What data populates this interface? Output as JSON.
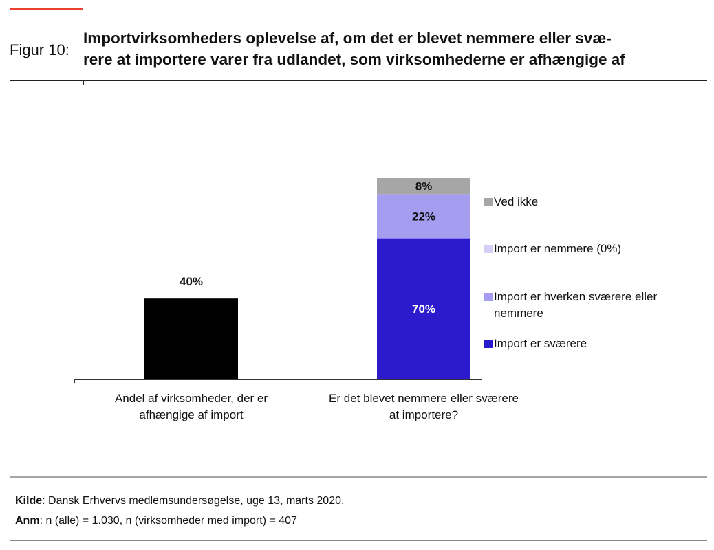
{
  "figure_label": "Figur 10:",
  "title_lines": [
    "Importvirksomheders oplevelse af, om det er blevet nemmere eller svæ-",
    "rere at importere varer fra udlandet, som virksomhederne er afhængige af"
  ],
  "chart_data": {
    "type": "bar",
    "stacked": true,
    "title": "Importvirksomheders oplevelse af, om det er blevet nemmere eller sværere at importere varer fra udlandet, som virksomhederne er afhængige af",
    "categories": [
      [
        "Andel af virksomheder, der er",
        "afhængige af import"
      ],
      [
        "Er det blevet nemmere eller sværere",
        "at importere?"
      ]
    ],
    "ylim": [
      0,
      100
    ],
    "grid": false,
    "legend_position": "right",
    "single_bar": {
      "category_index": 0,
      "value": 40,
      "label": "40%",
      "color": "#000000"
    },
    "series": [
      {
        "name": "Import er sværere",
        "value": 70,
        "label": "70%",
        "color": "#2b1bcc",
        "label_color": "#ffffff"
      },
      {
        "name": "Import er hverken sværere eller nemmere",
        "value": 22,
        "label": "22%",
        "color": "#a59ef0",
        "label_color": "#111111"
      },
      {
        "name": "Import er nemmere (0%)",
        "value": 0,
        "label": "",
        "color": "#d4d1f7",
        "label_color": "#111111"
      },
      {
        "name": "Ved ikke",
        "value": 8,
        "label": "8%",
        "color": "#a6a6a6",
        "label_color": "#111111"
      }
    ],
    "legend": [
      {
        "lines": [
          "Ved ikke"
        ],
        "color": "#a6a6a6"
      },
      {
        "lines": [
          "Import er nemmere (0%)"
        ],
        "color": "#d4d1f7"
      },
      {
        "lines": [
          "Import er hverken sværere eller",
          "nemmere"
        ],
        "color": "#a59ef0"
      },
      {
        "lines": [
          "Import er sværere"
        ],
        "color": "#2b1bcc"
      }
    ]
  },
  "footer": {
    "source_label": "Kilde",
    "source_text": ": Dansk Erhvervs medlemsundersøgelse, uge 13, marts 2020.",
    "note_label": "Anm",
    "note_text": ": n (alle) = 1.030, n (virksomheder med import) = 407"
  }
}
